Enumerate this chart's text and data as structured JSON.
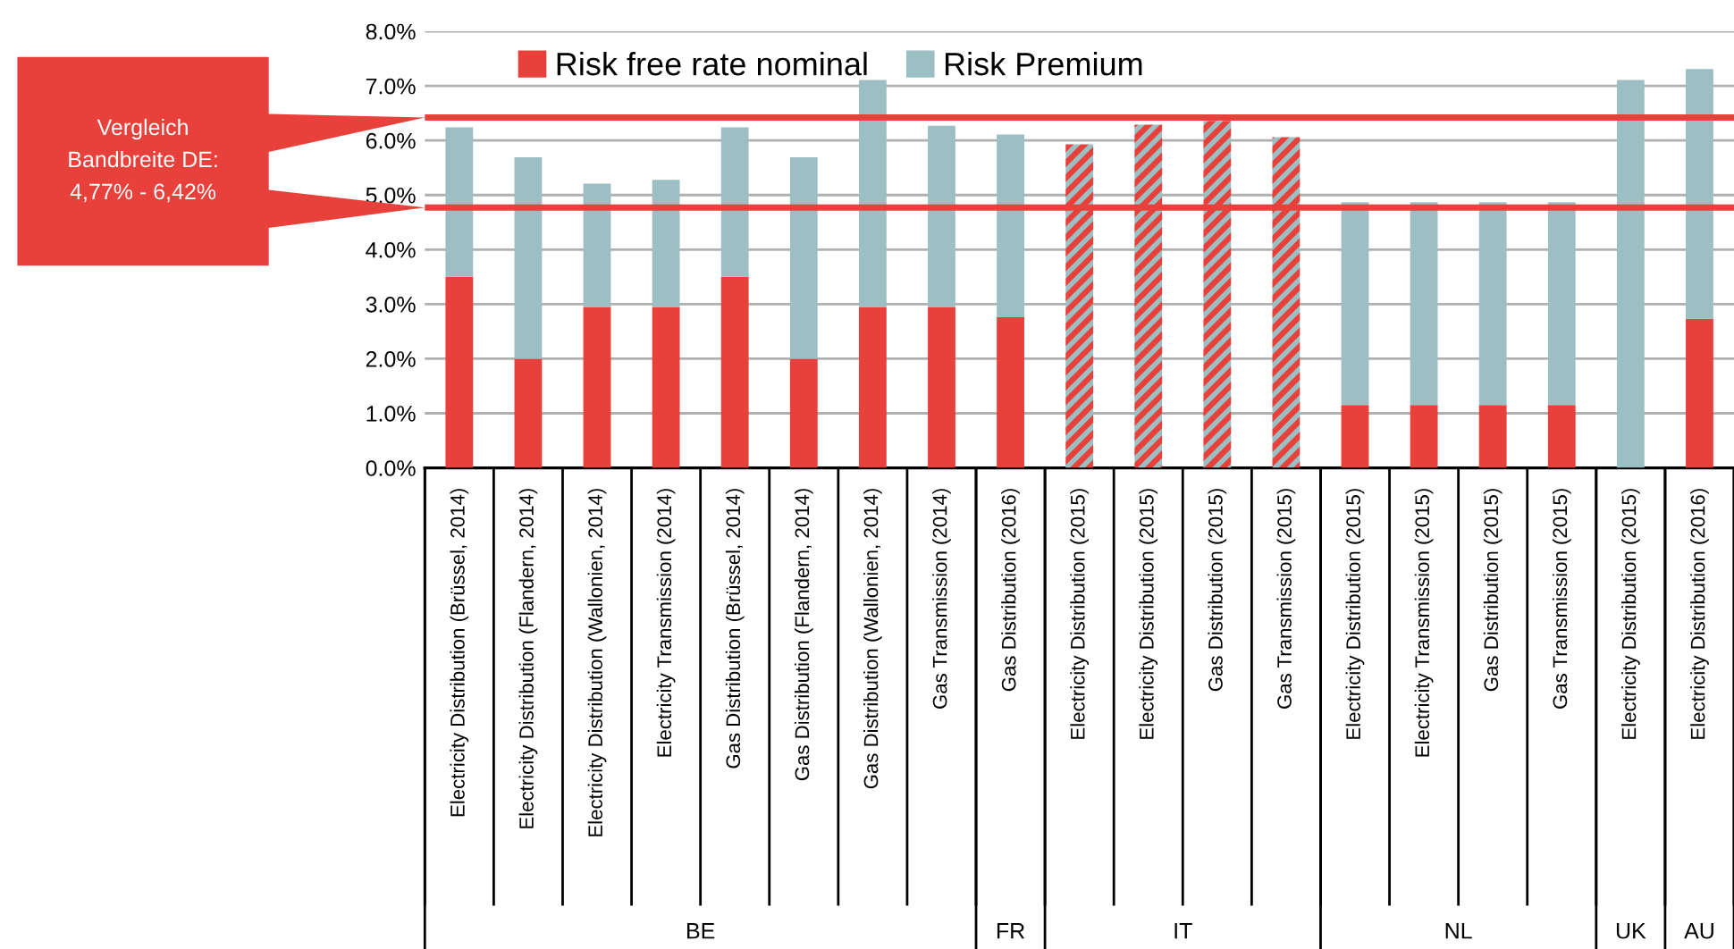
{
  "chart_data": {
    "type": "bar",
    "stacked": true,
    "categories": [
      "Electricity Distribution (Brüssel, 2014)",
      "Electricity Distribution (Flandern, 2014)",
      "Electricity Distribution (Wallonien, 2014)",
      "Electricity Transmission (2014)",
      "Gas Distribution (Brüssel, 2014)",
      "Gas Distribution (Flandern, 2014)",
      "Gas Distribution (Wallonien, 2014)",
      "Gas Transmission (2014)",
      "Gas Distribution (2016)",
      "Electricity Distribution (2015)",
      "Electricity Distribution (2015)",
      "Gas Distribution (2015)",
      "Gas Transmission (2015)",
      "Electricity Distribution (2015)",
      "Electricity Transmission (2015)",
      "Gas Distribution (2015)",
      "Gas Transmission (2015)",
      "Electricity Distribution (2015)",
      "Electricity Distribution (2016)"
    ],
    "series": [
      {
        "name": "Risk free rate nominal",
        "color": "#e8403a",
        "values": [
          3.5,
          2.0,
          2.95,
          2.95,
          3.5,
          2.0,
          2.95,
          2.95,
          2.76,
          null,
          null,
          null,
          null,
          1.15,
          1.15,
          1.15,
          1.15,
          0,
          2.73
        ]
      },
      {
        "name": "Risk Premium",
        "color": "#9bbfc2",
        "values": [
          2.74,
          3.69,
          2.26,
          2.33,
          2.74,
          3.69,
          4.16,
          3.32,
          3.35,
          null,
          null,
          null,
          null,
          3.72,
          3.72,
          3.72,
          3.72,
          7.11,
          4.58
        ]
      },
      {
        "color": "#e8403a",
        "values": [
          null,
          null,
          null,
          null,
          null,
          null,
          null,
          null,
          null,
          5.93,
          6.29,
          6.36,
          6.06,
          null,
          null,
          null,
          null,
          null,
          null
        ]
      }
    ],
    "ylim": [
      0,
      8
    ],
    "yticks": [
      {
        "value": 0,
        "label": "0.0%"
      },
      {
        "value": 1,
        "label": "1.0%"
      },
      {
        "value": 2,
        "label": "2.0%"
      },
      {
        "value": 3,
        "label": "3.0%"
      },
      {
        "value": 4,
        "label": "4.0%"
      },
      {
        "value": 5,
        "label": "5.0%"
      },
      {
        "value": 6,
        "label": "6.0%"
      },
      {
        "value": 7,
        "label": "7.0%"
      },
      {
        "value": 8,
        "label": "8.0%"
      }
    ],
    "grid": "y",
    "legend": "top",
    "ref_lines": [
      {
        "axis": "y",
        "value": 6.42,
        "color": "#e8403a"
      },
      {
        "axis": "y",
        "value": 4.77,
        "color": "#e8403a"
      }
    ],
    "annotations": [
      "Vergleich\nBandbreite DE:\n4,77% - 6,42%",
      "BE",
      "FR",
      "IT",
      "NL",
      "UK",
      "AU"
    ]
  }
}
